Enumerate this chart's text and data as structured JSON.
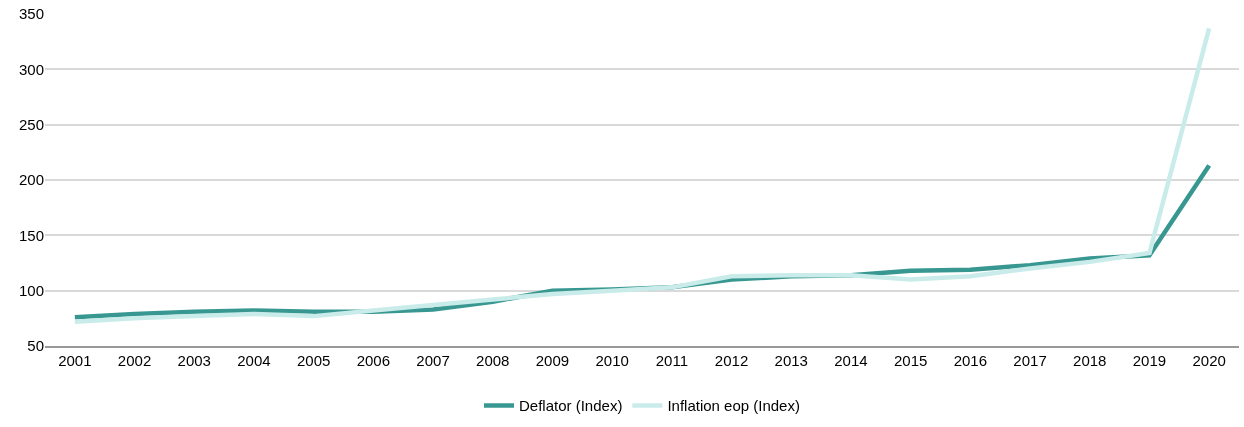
{
  "chart_data": {
    "type": "line",
    "categories": [
      "2001",
      "2002",
      "2003",
      "2004",
      "2005",
      "2006",
      "2007",
      "2008",
      "2009",
      "2010",
      "2011",
      "2012",
      "2013",
      "2014",
      "2015",
      "2016",
      "2017",
      "2018",
      "2019",
      "2020"
    ],
    "series": [
      {
        "name": "Deflator (Index)",
        "color": "#389891",
        "values": [
          76,
          79,
          81,
          82,
          81,
          81,
          83,
          90,
          100,
          101,
          103,
          110,
          113,
          114,
          118,
          119,
          123,
          129,
          132,
          213
        ]
      },
      {
        "name": "Inflation eop (Index)",
        "color": "#c9ecea",
        "values": [
          72,
          75,
          77,
          79,
          77,
          82,
          87,
          92,
          97,
          100,
          103,
          113,
          114,
          114,
          110,
          113,
          120,
          126,
          134,
          337
        ]
      }
    ],
    "ylim": [
      50,
      350
    ],
    "yticks": [
      50,
      100,
      150,
      200,
      250,
      300,
      350
    ],
    "grid": "y",
    "legend": "bottom",
    "line_style": "solid",
    "marker": "none"
  }
}
